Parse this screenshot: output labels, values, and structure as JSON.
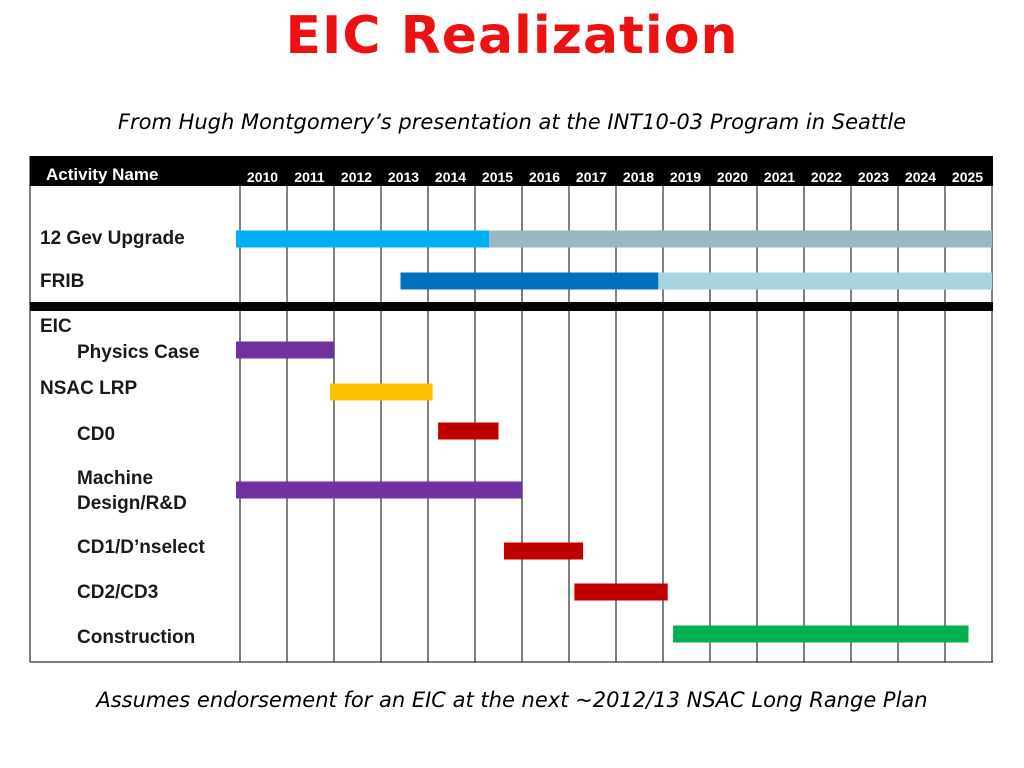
{
  "title": "EIC Realization",
  "subtitle": "From Hugh Montgomery’s presentation at the INT10-03 Program in Seattle",
  "footnote": "Assumes endorsement for an EIC at the next ~2012/13 NSAC Long Range Plan",
  "chart_data": {
    "type": "gantt",
    "header_label": "Activity Name",
    "years": [
      "2010",
      "2011",
      "2012",
      "2013",
      "2014",
      "2015",
      "2016",
      "2017",
      "2018",
      "2019",
      "2020",
      "2021",
      "2022",
      "2023",
      "2024",
      "2025"
    ],
    "tasks": [
      {
        "id": "12gev",
        "label_lines": [
          "12 Gev Upgrade"
        ],
        "indent": false,
        "start": 2010.0,
        "end": 2015.3,
        "color": "#00b0f0",
        "continuation_end": 2026.0,
        "continuation_color": "#9ab8c0"
      },
      {
        "id": "frib",
        "label_lines": [
          "FRIB"
        ],
        "indent": false,
        "start": 2013.5,
        "end": 2018.9,
        "color": "#0070c0",
        "continuation_end": 2026.0,
        "continuation_color": "#a8d4e0"
      },
      {
        "id": "eic",
        "label_lines": [
          "EIC"
        ],
        "indent": false,
        "start": null,
        "end": null,
        "color": null
      },
      {
        "id": "physics",
        "label_lines": [
          "Physics Case"
        ],
        "indent": true,
        "start": 2010.0,
        "end": 2012.0,
        "color": "#7030a0"
      },
      {
        "id": "nsac",
        "label_lines": [
          "NSAC LRP"
        ],
        "indent": false,
        "start": 2012.0,
        "end": 2014.1,
        "color": "#ffc000"
      },
      {
        "id": "cd0",
        "label_lines": [
          "CD0"
        ],
        "indent": true,
        "start": 2014.3,
        "end": 2015.5,
        "color": "#c00000"
      },
      {
        "id": "machine",
        "label_lines": [
          "Machine",
          "Design/R&D"
        ],
        "indent": true,
        "start": 2010.0,
        "end": 2016.0,
        "color": "#7030a0"
      },
      {
        "id": "cd1",
        "label_lines": [
          "CD1/D’nselect"
        ],
        "indent": true,
        "start": 2015.7,
        "end": 2017.3,
        "color": "#c00000"
      },
      {
        "id": "cd2",
        "label_lines": [
          "CD2/CD3"
        ],
        "indent": true,
        "start": 2017.2,
        "end": 2019.1,
        "color": "#c00000"
      },
      {
        "id": "construction",
        "label_lines": [
          "Construction"
        ],
        "indent": true,
        "start": 2019.3,
        "end": 2025.5,
        "color": "#00b050"
      }
    ]
  }
}
